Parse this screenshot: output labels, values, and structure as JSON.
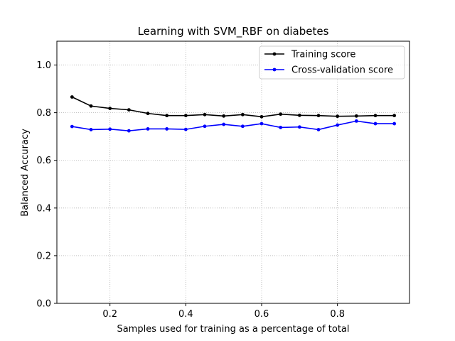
{
  "chart_data": {
    "type": "line",
    "title": "Learning with SVM_RBF on diabetes",
    "xlabel": "Samples used for training as a percentage of total",
    "ylabel": "Balanced Accuracy",
    "xlim": [
      0.06,
      0.99
    ],
    "ylim": [
      0.0,
      1.1
    ],
    "xticks": [
      "0.2",
      "0.4",
      "0.6",
      "0.8"
    ],
    "yticks": [
      "0.0",
      "0.2",
      "0.4",
      "0.6",
      "0.8",
      "1.0"
    ],
    "grid": true,
    "legend_position": "top-right",
    "x": [
      0.1,
      0.15,
      0.2,
      0.25,
      0.3,
      0.35,
      0.4,
      0.45,
      0.5,
      0.55,
      0.6,
      0.65,
      0.7,
      0.75,
      0.8,
      0.85,
      0.9,
      0.95
    ],
    "series": [
      {
        "name": "Training score",
        "color": "#000000",
        "values": [
          0.866,
          0.828,
          0.818,
          0.812,
          0.797,
          0.788,
          0.788,
          0.792,
          0.786,
          0.792,
          0.783,
          0.794,
          0.789,
          0.788,
          0.785,
          0.786,
          0.788,
          0.788
        ]
      },
      {
        "name": "Cross-validation score",
        "color": "#0000ff",
        "values": [
          0.742,
          0.729,
          0.731,
          0.724,
          0.732,
          0.732,
          0.73,
          0.743,
          0.751,
          0.743,
          0.754,
          0.738,
          0.74,
          0.729,
          0.748,
          0.765,
          0.754,
          0.754
        ]
      }
    ]
  }
}
